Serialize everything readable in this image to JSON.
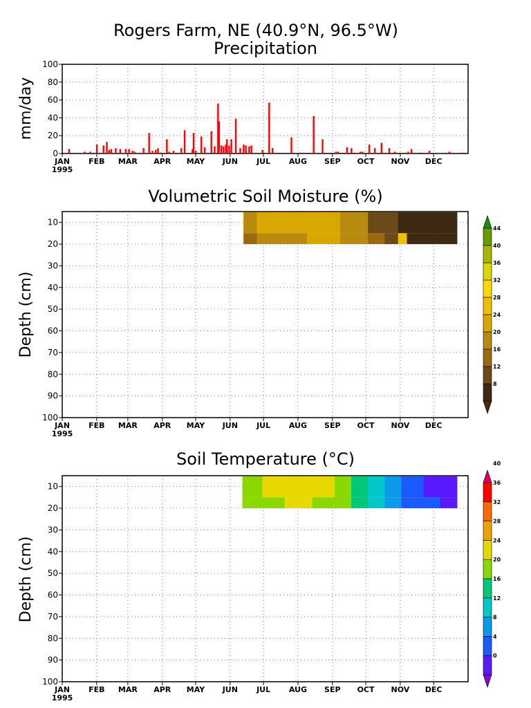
{
  "title": {
    "line1": "Rogers Farm, NE (40.9°N, 96.5°W)",
    "line2": "Precipitation"
  },
  "months": [
    "JAN",
    "FEB",
    "MAR",
    "APR",
    "MAY",
    "JUN",
    "JUL",
    "AUG",
    "SEP",
    "OCT",
    "NOV",
    "DEC"
  ],
  "year": "1995",
  "chart_data": [
    {
      "type": "bar",
      "title": "Precipitation",
      "ylabel": "mm/day",
      "ylim": [
        0,
        100
      ],
      "yticks": [
        0,
        20,
        40,
        60,
        80,
        100
      ],
      "xlim": [
        0,
        365
      ],
      "grid": true,
      "color": "#ff0000",
      "x": [
        6,
        20,
        25,
        31,
        37,
        40,
        42,
        44,
        48,
        52,
        57,
        60,
        63,
        65,
        73,
        78,
        81,
        84,
        86,
        88,
        94,
        96,
        100,
        107,
        110,
        117,
        118,
        120,
        125,
        128,
        134,
        137,
        140,
        141,
        143,
        145,
        147,
        148,
        150,
        152,
        156,
        160,
        163,
        165,
        168,
        170,
        180,
        186,
        189,
        206,
        214,
        226,
        234,
        246,
        248,
        256,
        260,
        263,
        268,
        270,
        276,
        281,
        287,
        294,
        299,
        311,
        314,
        322,
        330,
        348,
        359
      ],
      "values": [
        5,
        2,
        2,
        10,
        9,
        13,
        4,
        5,
        6,
        5,
        5,
        5,
        3,
        2,
        6,
        23,
        3,
        4,
        6,
        1,
        16,
        2,
        3,
        6,
        26,
        5,
        23,
        3,
        19,
        7,
        25,
        8,
        56,
        36,
        9,
        8,
        10,
        16,
        9,
        16,
        39,
        6,
        10,
        9,
        8,
        9,
        4,
        57,
        6,
        18,
        1,
        42,
        16,
        2,
        2,
        7,
        6,
        1,
        2,
        2,
        10,
        6,
        12,
        6,
        2,
        2,
        5,
        1,
        3,
        2,
        1
      ]
    },
    {
      "type": "heatmap",
      "title": "Volumetric Soil Moisture (%)",
      "ylabel": "Depth (cm)",
      "ylim": [
        100,
        5
      ],
      "yticks": [
        10,
        20,
        30,
        40,
        50,
        60,
        70,
        80,
        90,
        100
      ],
      "xlim": [
        0,
        365
      ],
      "grid": true,
      "colorbar": {
        "labels": [
          "8",
          "12",
          "16",
          "20",
          "24",
          "28",
          "32",
          "36",
          "40",
          "44"
        ],
        "colors": [
          "#4a2a0a",
          "#3e2a12",
          "#6b4a1a",
          "#9a6a10",
          "#b88a10",
          "#d8a800",
          "#f0c000",
          "#ffd800",
          "#d8d800",
          "#a8b800",
          "#6a9a00",
          "#1a8a1a"
        ]
      },
      "depths": [
        10,
        20
      ],
      "x_range": [
        163,
        355
      ],
      "columns": [
        {
          "x0": 163,
          "x1": 175,
          "d10": 22,
          "d20": 18
        },
        {
          "x0": 175,
          "x1": 190,
          "d10": 24,
          "d20": 20
        },
        {
          "x0": 190,
          "x1": 205,
          "d10": 25,
          "d20": 22
        },
        {
          "x0": 205,
          "x1": 220,
          "d10": 26,
          "d20": 23
        },
        {
          "x0": 220,
          "x1": 235,
          "d10": 25,
          "d20": 24
        },
        {
          "x0": 235,
          "x1": 250,
          "d10": 24,
          "d20": 24
        },
        {
          "x0": 250,
          "x1": 262,
          "d10": 22,
          "d20": 22
        },
        {
          "x0": 262,
          "x1": 275,
          "d10": 20,
          "d20": 20
        },
        {
          "x0": 275,
          "x1": 290,
          "d10": 15,
          "d20": 16
        },
        {
          "x0": 290,
          "x1": 302,
          "d10": 12,
          "d20": 14
        },
        {
          "x0": 302,
          "x1": 310,
          "d10": 10,
          "d20": 30
        },
        {
          "x0": 310,
          "x1": 340,
          "d10": 9,
          "d20": 9
        },
        {
          "x0": 340,
          "x1": 355,
          "d10": 8,
          "d20": 8
        }
      ]
    },
    {
      "type": "heatmap",
      "title": "Soil Temperature (°C)",
      "ylabel": "Depth (cm)",
      "ylim": [
        100,
        5
      ],
      "yticks": [
        10,
        20,
        30,
        40,
        50,
        60,
        70,
        80,
        90,
        100
      ],
      "xlim": [
        0,
        365
      ],
      "grid": true,
      "colorbar": {
        "labels": [
          "0",
          "4",
          "8",
          "12",
          "16",
          "20",
          "24",
          "28",
          "32",
          "36",
          "40"
        ],
        "colors": [
          "#8a00d8",
          "#5a1aff",
          "#1a5aff",
          "#0a9ae8",
          "#00c8c8",
          "#00c878",
          "#8ad800",
          "#e8d800",
          "#f0a000",
          "#ff6a00",
          "#ff0000",
          "#d8005a"
        ]
      },
      "depths": [
        10,
        20
      ],
      "x_range": [
        162,
        355
      ],
      "columns": [
        {
          "x0": 162,
          "x1": 180,
          "d10": 22,
          "d20": 21
        },
        {
          "x0": 180,
          "x1": 200,
          "d10": 25,
          "d20": 23
        },
        {
          "x0": 200,
          "x1": 225,
          "d10": 26,
          "d20": 24
        },
        {
          "x0": 225,
          "x1": 245,
          "d10": 25,
          "d20": 23
        },
        {
          "x0": 245,
          "x1": 260,
          "d10": 22,
          "d20": 21
        },
        {
          "x0": 260,
          "x1": 275,
          "d10": 18,
          "d20": 18
        },
        {
          "x0": 275,
          "x1": 290,
          "d10": 14,
          "d20": 14
        },
        {
          "x0": 290,
          "x1": 305,
          "d10": 10,
          "d20": 11
        },
        {
          "x0": 305,
          "x1": 325,
          "d10": 6,
          "d20": 7
        },
        {
          "x0": 325,
          "x1": 340,
          "d10": 3,
          "d20": 4
        },
        {
          "x0": 340,
          "x1": 355,
          "d10": 1,
          "d20": 2
        }
      ]
    }
  ]
}
